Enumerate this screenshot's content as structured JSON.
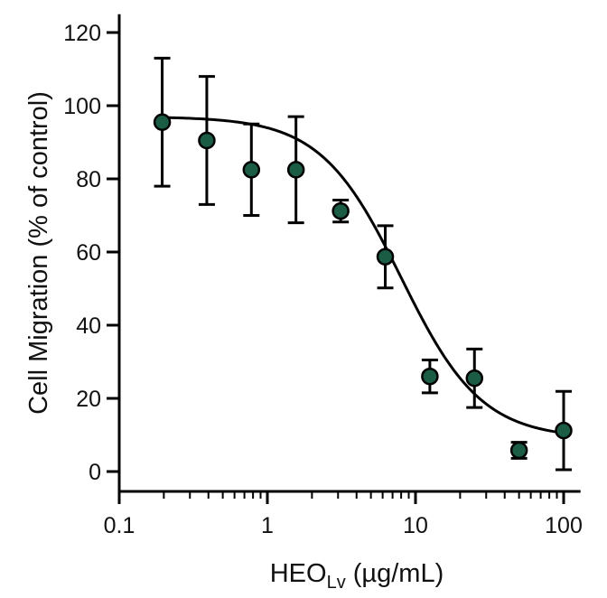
{
  "chart_data": {
    "type": "scatter",
    "title": "",
    "xlabel_main": "HEO",
    "xlabel_sub": "Lv",
    "xlabel_unit": " (µg/mL)",
    "ylabel": "Cell Migration (% of control)",
    "x_scale": "log",
    "xlim": [
      0.1,
      130
    ],
    "ylim": [
      -5,
      125
    ],
    "x_ticks": [
      0.1,
      1,
      10,
      100
    ],
    "x_tick_labels": [
      "0.1",
      "1",
      "10",
      "100"
    ],
    "y_ticks": [
      0,
      20,
      40,
      60,
      80,
      100,
      120
    ],
    "y_tick_labels": [
      "0",
      "20",
      "40",
      "60",
      "80",
      "100",
      "120"
    ],
    "grid": false,
    "marker_color": "#1a5c44",
    "line_color": "#000000",
    "points": [
      {
        "x": 0.195,
        "y": 95.5,
        "err": 17.5
      },
      {
        "x": 0.39,
        "y": 90.5,
        "err": 17.5
      },
      {
        "x": 0.78,
        "y": 82.5,
        "err": 12.5
      },
      {
        "x": 1.56,
        "y": 82.5,
        "err": 14.5
      },
      {
        "x": 3.125,
        "y": 71.2,
        "err": 3.0
      },
      {
        "x": 6.25,
        "y": 58.7,
        "err": 8.5
      },
      {
        "x": 12.5,
        "y": 26.0,
        "err": 4.5
      },
      {
        "x": 25,
        "y": 25.5,
        "err": 8.0
      },
      {
        "x": 50,
        "y": 5.8,
        "err": 2.2
      },
      {
        "x": 100,
        "y": 11.2,
        "err": 10.7
      }
    ],
    "fit_curve": {
      "model": "four-parameter logistic",
      "top": 97,
      "bottom": 9,
      "ec50": 8,
      "hill": 1.6
    }
  }
}
